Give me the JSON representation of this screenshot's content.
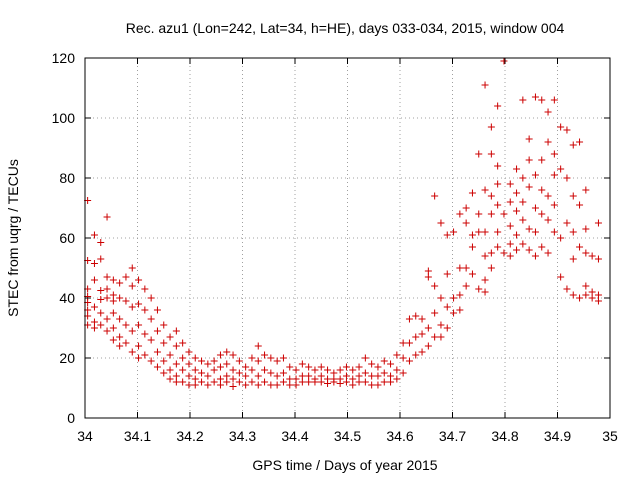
{
  "chart_data": {
    "type": "scatter",
    "title": "Rec. azu1 (Lon=242, Lat=34, h=HE), days 033-034, 2015, window 004",
    "xlabel": "GPS time / Days of year 2015",
    "ylabel": "STEC from uqrg / TECUs",
    "xlim": [
      34,
      35
    ],
    "ylim": [
      0,
      120
    ],
    "xticks": [
      "34",
      "34.1",
      "34.2",
      "34.3",
      "34.4",
      "34.5",
      "34.6",
      "34.7",
      "34.8",
      "34.9",
      "35"
    ],
    "yticks": [
      "0",
      "20",
      "40",
      "60",
      "80",
      "100",
      "120"
    ],
    "grid": true,
    "marker": "+",
    "color": "#cc0000",
    "points": [
      [
        34.005,
        72.5
      ],
      [
        34.005,
        52.5
      ],
      [
        34.005,
        43
      ],
      [
        34.005,
        40.5
      ],
      [
        34.005,
        38.5
      ],
      [
        34.005,
        36
      ],
      [
        34.005,
        34
      ],
      [
        34.005,
        31
      ],
      [
        34.018,
        61
      ],
      [
        34.018,
        51.5
      ],
      [
        34.018,
        46
      ],
      [
        34.018,
        37
      ],
      [
        34.018,
        32
      ],
      [
        34.018,
        30
      ],
      [
        34.03,
        58.5
      ],
      [
        34.03,
        53
      ],
      [
        34.03,
        42.5
      ],
      [
        34.03,
        39.5
      ],
      [
        34.03,
        35
      ],
      [
        34.03,
        31
      ],
      [
        34.042,
        67
      ],
      [
        34.042,
        47
      ],
      [
        34.042,
        43
      ],
      [
        34.042,
        40
      ],
      [
        34.042,
        33
      ],
      [
        34.042,
        29
      ],
      [
        34.054,
        46
      ],
      [
        34.054,
        41
      ],
      [
        34.054,
        39
      ],
      [
        34.054,
        35
      ],
      [
        34.054,
        30
      ],
      [
        34.054,
        26
      ],
      [
        34.066,
        45
      ],
      [
        34.066,
        40
      ],
      [
        34.066,
        33
      ],
      [
        34.066,
        27
      ],
      [
        34.066,
        24
      ],
      [
        34.078,
        47
      ],
      [
        34.078,
        39
      ],
      [
        34.078,
        31
      ],
      [
        34.078,
        25
      ],
      [
        34.09,
        50
      ],
      [
        34.09,
        44
      ],
      [
        34.09,
        37
      ],
      [
        34.09,
        29
      ],
      [
        34.09,
        22
      ],
      [
        34.102,
        46
      ],
      [
        34.102,
        38
      ],
      [
        34.102,
        31
      ],
      [
        34.102,
        24
      ],
      [
        34.102,
        20
      ],
      [
        34.114,
        43
      ],
      [
        34.114,
        36
      ],
      [
        34.114,
        28
      ],
      [
        34.114,
        21
      ],
      [
        34.126,
        40
      ],
      [
        34.126,
        33
      ],
      [
        34.126,
        26
      ],
      [
        34.126,
        19
      ],
      [
        34.138,
        36
      ],
      [
        34.138,
        29
      ],
      [
        34.138,
        22
      ],
      [
        34.138,
        17
      ],
      [
        34.15,
        31
      ],
      [
        34.15,
        25
      ],
      [
        34.15,
        19
      ],
      [
        34.15,
        15
      ],
      [
        34.162,
        27
      ],
      [
        34.162,
        21
      ],
      [
        34.162,
        16
      ],
      [
        34.162,
        13
      ],
      [
        34.174,
        29
      ],
      [
        34.174,
        24
      ],
      [
        34.174,
        18
      ],
      [
        34.174,
        14
      ],
      [
        34.174,
        12
      ],
      [
        34.186,
        25
      ],
      [
        34.186,
        20
      ],
      [
        34.186,
        16
      ],
      [
        34.186,
        12
      ],
      [
        34.198,
        22
      ],
      [
        34.198,
        18
      ],
      [
        34.198,
        14
      ],
      [
        34.198,
        11
      ],
      [
        34.21,
        20
      ],
      [
        34.21,
        16
      ],
      [
        34.21,
        13
      ],
      [
        34.21,
        11
      ],
      [
        34.222,
        19
      ],
      [
        34.222,
        15
      ],
      [
        34.222,
        12
      ],
      [
        34.234,
        18
      ],
      [
        34.234,
        14
      ],
      [
        34.234,
        11
      ],
      [
        34.246,
        19
      ],
      [
        34.246,
        16
      ],
      [
        34.246,
        12
      ],
      [
        34.258,
        21
      ],
      [
        34.258,
        17
      ],
      [
        34.258,
        13
      ],
      [
        34.258,
        11
      ],
      [
        34.27,
        22
      ],
      [
        34.27,
        18
      ],
      [
        34.27,
        14
      ],
      [
        34.27,
        12
      ],
      [
        34.282,
        21
      ],
      [
        34.282,
        16
      ],
      [
        34.282,
        13
      ],
      [
        34.282,
        10.5
      ],
      [
        34.294,
        19
      ],
      [
        34.294,
        15
      ],
      [
        34.294,
        12
      ],
      [
        34.306,
        17
      ],
      [
        34.306,
        14
      ],
      [
        34.306,
        11
      ],
      [
        34.318,
        20
      ],
      [
        34.318,
        16
      ],
      [
        34.318,
        12
      ],
      [
        34.33,
        24
      ],
      [
        34.33,
        19
      ],
      [
        34.33,
        14
      ],
      [
        34.33,
        11
      ],
      [
        34.342,
        21
      ],
      [
        34.342,
        16
      ],
      [
        34.342,
        12
      ],
      [
        34.354,
        20
      ],
      [
        34.354,
        15
      ],
      [
        34.354,
        11
      ],
      [
        34.366,
        19
      ],
      [
        34.366,
        14
      ],
      [
        34.366,
        11
      ],
      [
        34.378,
        20
      ],
      [
        34.378,
        15
      ],
      [
        34.378,
        12
      ],
      [
        34.39,
        17
      ],
      [
        34.39,
        13
      ],
      [
        34.39,
        11
      ],
      [
        34.402,
        16
      ],
      [
        34.402,
        13
      ],
      [
        34.402,
        11
      ],
      [
        34.414,
        18
      ],
      [
        34.414,
        14
      ],
      [
        34.414,
        12
      ],
      [
        34.426,
        17
      ],
      [
        34.426,
        14
      ],
      [
        34.426,
        12
      ],
      [
        34.438,
        16
      ],
      [
        34.438,
        13
      ],
      [
        34.438,
        12
      ],
      [
        34.45,
        17
      ],
      [
        34.45,
        14
      ],
      [
        34.45,
        12
      ],
      [
        34.462,
        16
      ],
      [
        34.462,
        13
      ],
      [
        34.462,
        11.5
      ],
      [
        34.474,
        15
      ],
      [
        34.474,
        13
      ],
      [
        34.474,
        12
      ],
      [
        34.486,
        16
      ],
      [
        34.486,
        13
      ],
      [
        34.486,
        11.5
      ],
      [
        34.498,
        17
      ],
      [
        34.498,
        14
      ],
      [
        34.498,
        12
      ],
      [
        34.51,
        16
      ],
      [
        34.51,
        13
      ],
      [
        34.51,
        11
      ],
      [
        34.522,
        17
      ],
      [
        34.522,
        14
      ],
      [
        34.522,
        12
      ],
      [
        34.534,
        20
      ],
      [
        34.534,
        15
      ],
      [
        34.534,
        12
      ],
      [
        34.546,
        18
      ],
      [
        34.546,
        14
      ],
      [
        34.546,
        11
      ],
      [
        34.558,
        17
      ],
      [
        34.558,
        14
      ],
      [
        34.558,
        11
      ],
      [
        34.57,
        19
      ],
      [
        34.57,
        15
      ],
      [
        34.57,
        12
      ],
      [
        34.582,
        18
      ],
      [
        34.582,
        14
      ],
      [
        34.582,
        12
      ],
      [
        34.594,
        21
      ],
      [
        34.594,
        16
      ],
      [
        34.594,
        13
      ],
      [
        34.606,
        25
      ],
      [
        34.606,
        20
      ],
      [
        34.606,
        15
      ],
      [
        34.618,
        33
      ],
      [
        34.618,
        25
      ],
      [
        34.618,
        19
      ],
      [
        34.63,
        34
      ],
      [
        34.63,
        27
      ],
      [
        34.63,
        21
      ],
      [
        34.642,
        33
      ],
      [
        34.642,
        28
      ],
      [
        34.642,
        22
      ],
      [
        34.654,
        49
      ],
      [
        34.654,
        47
      ],
      [
        34.654,
        30
      ],
      [
        34.654,
        24
      ],
      [
        34.666,
        74
      ],
      [
        34.666,
        44
      ],
      [
        34.666,
        35
      ],
      [
        34.666,
        27
      ],
      [
        34.678,
        65
      ],
      [
        34.678,
        40
      ],
      [
        34.678,
        31
      ],
      [
        34.678,
        27
      ],
      [
        34.69,
        61
      ],
      [
        34.69,
        48
      ],
      [
        34.69,
        37
      ],
      [
        34.69,
        30
      ],
      [
        34.702,
        62
      ],
      [
        34.702,
        40
      ],
      [
        34.702,
        35
      ],
      [
        34.714,
        68
      ],
      [
        34.714,
        50
      ],
      [
        34.714,
        41
      ],
      [
        34.714,
        36
      ],
      [
        34.726,
        70
      ],
      [
        34.726,
        65
      ],
      [
        34.726,
        50
      ],
      [
        34.726,
        44
      ],
      [
        34.738,
        75
      ],
      [
        34.738,
        61
      ],
      [
        34.738,
        57
      ],
      [
        34.738,
        48
      ],
      [
        34.75,
        88
      ],
      [
        34.75,
        68
      ],
      [
        34.75,
        62
      ],
      [
        34.75,
        43
      ],
      [
        34.762,
        111
      ],
      [
        34.762,
        76
      ],
      [
        34.762,
        62
      ],
      [
        34.762,
        54
      ],
      [
        34.762,
        46
      ],
      [
        34.762,
        42
      ],
      [
        34.774,
        97
      ],
      [
        34.774,
        88
      ],
      [
        34.774,
        74
      ],
      [
        34.774,
        68
      ],
      [
        34.774,
        55
      ],
      [
        34.774,
        50
      ],
      [
        34.786,
        104
      ],
      [
        34.786,
        84
      ],
      [
        34.786,
        78
      ],
      [
        34.786,
        71
      ],
      [
        34.786,
        62
      ],
      [
        34.786,
        57
      ],
      [
        34.798,
        119
      ],
      [
        34.798,
        68
      ],
      [
        34.798,
        55
      ],
      [
        34.81,
        78
      ],
      [
        34.81,
        72
      ],
      [
        34.81,
        64
      ],
      [
        34.81,
        58
      ],
      [
        34.81,
        54
      ],
      [
        34.822,
        83
      ],
      [
        34.822,
        75
      ],
      [
        34.822,
        69
      ],
      [
        34.822,
        61
      ],
      [
        34.822,
        56
      ],
      [
        34.834,
        106
      ],
      [
        34.834,
        80
      ],
      [
        34.834,
        72
      ],
      [
        34.834,
        66
      ],
      [
        34.834,
        58
      ],
      [
        34.846,
        93
      ],
      [
        34.846,
        86
      ],
      [
        34.846,
        77
      ],
      [
        34.846,
        63
      ],
      [
        34.846,
        56
      ],
      [
        34.858,
        107
      ],
      [
        34.858,
        81
      ],
      [
        34.858,
        70
      ],
      [
        34.858,
        62
      ],
      [
        34.858,
        54
      ],
      [
        34.87,
        106
      ],
      [
        34.87,
        86
      ],
      [
        34.87,
        76
      ],
      [
        34.87,
        68
      ],
      [
        34.87,
        57
      ],
      [
        34.882,
        102
      ],
      [
        34.882,
        92
      ],
      [
        34.882,
        74
      ],
      [
        34.882,
        66
      ],
      [
        34.882,
        55
      ],
      [
        34.894,
        106
      ],
      [
        34.894,
        88
      ],
      [
        34.894,
        81
      ],
      [
        34.894,
        71
      ],
      [
        34.894,
        62
      ],
      [
        34.906,
        97
      ],
      [
        34.906,
        83
      ],
      [
        34.906,
        60
      ],
      [
        34.906,
        47
      ],
      [
        34.918,
        96
      ],
      [
        34.918,
        80
      ],
      [
        34.918,
        65
      ],
      [
        34.918,
        43
      ],
      [
        34.93,
        91
      ],
      [
        34.93,
        74
      ],
      [
        34.93,
        62
      ],
      [
        34.93,
        53
      ],
      [
        34.93,
        41
      ],
      [
        34.942,
        92
      ],
      [
        34.942,
        71
      ],
      [
        34.942,
        57
      ],
      [
        34.942,
        40
      ],
      [
        34.954,
        76
      ],
      [
        34.954,
        63
      ],
      [
        34.954,
        55
      ],
      [
        34.954,
        44
      ],
      [
        34.954,
        41
      ],
      [
        34.966,
        54
      ],
      [
        34.966,
        42
      ],
      [
        34.966,
        40
      ],
      [
        34.978,
        65
      ],
      [
        34.978,
        53
      ],
      [
        34.978,
        41
      ],
      [
        34.978,
        39
      ]
    ]
  }
}
